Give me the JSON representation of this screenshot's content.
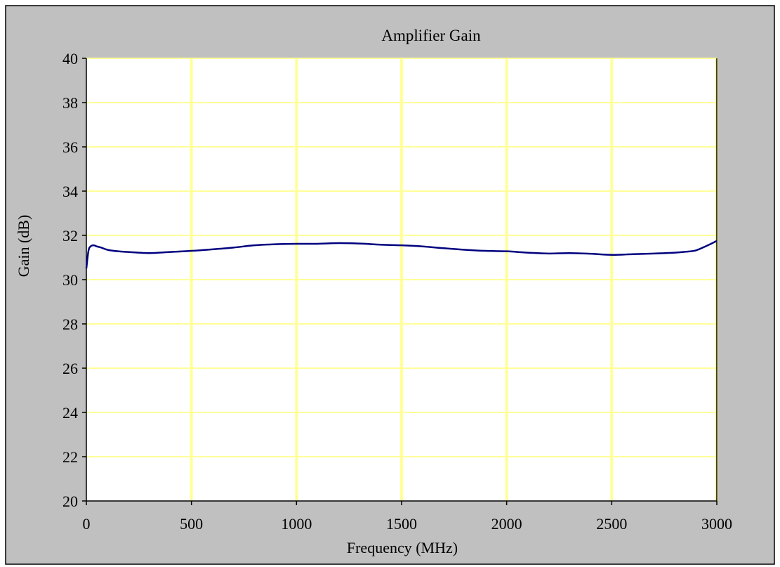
{
  "chart_data": {
    "type": "line",
    "title": "Amplifier Gain",
    "xlabel": "Frequency (MHz)",
    "ylabel": "Gain (dB)",
    "xlim": [
      0,
      3000
    ],
    "ylim": [
      20,
      40
    ],
    "xticks": [
      0,
      500,
      1000,
      1500,
      2000,
      2500,
      3000
    ],
    "yticks": [
      20,
      22,
      24,
      26,
      28,
      30,
      32,
      34,
      36,
      38,
      40
    ],
    "grid": true,
    "legend": "none",
    "series": [
      {
        "name": "",
        "x": [
          0,
          10,
          20,
          35,
          50,
          70,
          100,
          150,
          200,
          300,
          400,
          500,
          600,
          700,
          800,
          900,
          1000,
          1100,
          1200,
          1300,
          1400,
          1500,
          1600,
          1700,
          1800,
          1900,
          2000,
          2100,
          2200,
          2300,
          2400,
          2500,
          2600,
          2700,
          2800,
          2850,
          2900,
          2950,
          3000
        ],
        "y": [
          30.5,
          31.3,
          31.5,
          31.55,
          31.5,
          31.45,
          31.35,
          31.28,
          31.25,
          31.2,
          31.25,
          31.3,
          31.37,
          31.45,
          31.55,
          31.6,
          31.62,
          31.62,
          31.65,
          31.63,
          31.58,
          31.55,
          31.5,
          31.42,
          31.35,
          31.3,
          31.28,
          31.22,
          31.18,
          31.2,
          31.17,
          31.12,
          31.15,
          31.18,
          31.22,
          31.26,
          31.32,
          31.52,
          31.75
        ]
      }
    ],
    "colors": {
      "outer_background": "#c0c0c0",
      "plot_background": "#ffffff",
      "grid": "#ffff99",
      "line": "#00007f",
      "axis": "#000000"
    }
  }
}
